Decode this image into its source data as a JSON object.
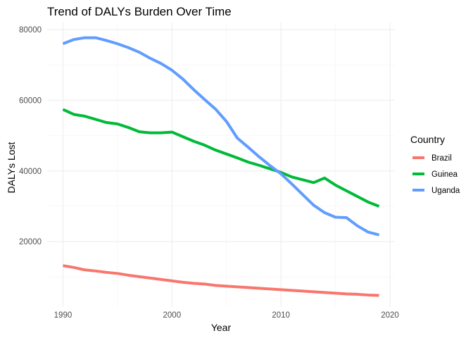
{
  "chart_data": {
    "type": "line",
    "title": "Trend of DALYs Burden Over Time",
    "xlabel": "Year",
    "ylabel": "DALYs Lost",
    "xlim": [
      1988.55,
      2020.45
    ],
    "ylim": [
      1500,
      82000
    ],
    "x_ticks": [
      1990,
      2000,
      2010,
      2020
    ],
    "x_tick_labels": [
      "1990",
      "2000",
      "2010",
      "2020"
    ],
    "y_ticks": [
      20000,
      40000,
      60000,
      80000
    ],
    "y_tick_labels": [
      "20000",
      "40000",
      "60000",
      "80000"
    ],
    "grid": true,
    "legend": {
      "title": "Country",
      "position": "right"
    },
    "x": [
      1990,
      1991,
      1992,
      1993,
      1994,
      1995,
      1996,
      1997,
      1998,
      1999,
      2000,
      2001,
      2002,
      2003,
      2004,
      2005,
      2006,
      2007,
      2008,
      2009,
      2010,
      2011,
      2012,
      2013,
      2014,
      2015,
      2016,
      2017,
      2018,
      2019
    ],
    "series": [
      {
        "name": "Brazil",
        "color": "#f8766d",
        "values": [
          13200,
          12700,
          12000,
          11700,
          11300,
          11000,
          10500,
          10100,
          9700,
          9300,
          8900,
          8500,
          8200,
          8000,
          7600,
          7400,
          7200,
          7000,
          6800,
          6600,
          6400,
          6200,
          6000,
          5800,
          5600,
          5400,
          5200,
          5100,
          4900,
          4800
        ]
      },
      {
        "name": "Guinea",
        "color": "#00ba38",
        "values": [
          57400,
          56000,
          55500,
          54600,
          53700,
          53300,
          52300,
          51100,
          50800,
          50800,
          51000,
          49700,
          48400,
          47300,
          45900,
          44800,
          43700,
          42500,
          41600,
          40600,
          39600,
          38300,
          37500,
          36700,
          38000,
          36000,
          34400,
          32800,
          31200,
          30000
        ]
      },
      {
        "name": "Uganda",
        "color": "#619cff",
        "values": [
          76000,
          77200,
          77700,
          77700,
          76900,
          76000,
          74900,
          73600,
          71900,
          70400,
          68500,
          66000,
          63000,
          60200,
          57500,
          54000,
          49300,
          46700,
          44000,
          41500,
          39200,
          36300,
          33300,
          30300,
          28200,
          26900,
          26800,
          24500,
          22700,
          21900
        ]
      }
    ]
  }
}
